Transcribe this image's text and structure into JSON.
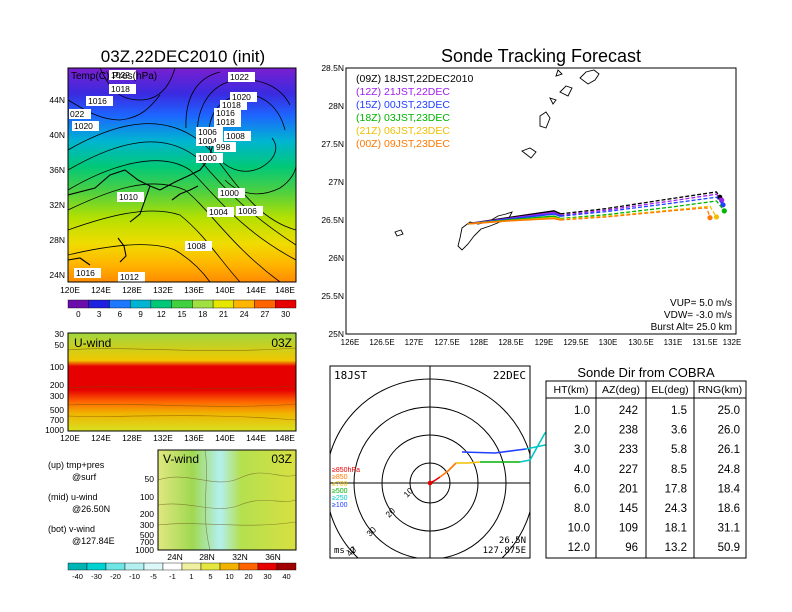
{
  "map_panel": {
    "title": "03Z,22DEC2010 (init)",
    "overlay_label": "Temp(C) Pres(hPa)",
    "lon_ticks": [
      "120E",
      "124E",
      "128E",
      "132E",
      "136E",
      "140E",
      "144E",
      "148E"
    ],
    "lat_ticks": [
      "44N",
      "40N",
      "36N",
      "32N",
      "28N",
      "24N"
    ],
    "pressure_labels": [
      "1022",
      "1018",
      "1016",
      "1020",
      "1016",
      "022",
      "1020",
      "1018",
      "1016",
      "1020",
      "1008",
      "1006",
      "1004",
      "1008",
      "998",
      "1000",
      "1010",
      "1000",
      "1004",
      "1006",
      "1008",
      "1016",
      "1012",
      "1004",
      "1012"
    ],
    "colorbar": [
      "0",
      "3",
      "6",
      "9",
      "12",
      "15",
      "18",
      "21",
      "24",
      "27",
      "30"
    ],
    "colorbar_colors": [
      "#6a0dad",
      "#2020e0",
      "#1e78ff",
      "#00b4d2",
      "#00c878",
      "#40d040",
      "#a0e040",
      "#e6e600",
      "#ffb400",
      "#ff6400",
      "#e60000"
    ]
  },
  "uwind_panel": {
    "title": "U-wind",
    "time": "03Z",
    "y_ticks": [
      "30",
      "50",
      "100",
      "200",
      "300",
      "500",
      "700",
      "1000"
    ],
    "x_ticks": [
      "120E",
      "124E",
      "128E",
      "132E",
      "136E",
      "140E",
      "144E",
      "148E"
    ]
  },
  "vwind_panel": {
    "title": "V-wind",
    "time": "03Z",
    "y_ticks": [
      "50",
      "100",
      "200",
      "300",
      "500",
      "700",
      "1000"
    ],
    "x_ticks": [
      "24N",
      "28N",
      "32N",
      "36N"
    ],
    "colorbar": [
      "-40",
      "-30",
      "-20",
      "-10",
      "-5",
      "-1",
      "1",
      "5",
      "10",
      "20",
      "30",
      "40"
    ],
    "colorbar_colors": [
      "#00b4b4",
      "#00d2d2",
      "#6ee6e6",
      "#b4f0f0",
      "#dcf8f8",
      "#ffffff",
      "#f0f0a0",
      "#e6e640",
      "#f0b400",
      "#ff6400",
      "#e60000",
      "#a00000"
    ]
  },
  "legend_text": {
    "up": "(up) tmp+pres",
    "up2": "@surf",
    "mid": "(mid) u-wind",
    "mid2": "@26.50N",
    "bot": "(bot) v-wind",
    "bot2": "@127.84E"
  },
  "tracking_panel": {
    "title": "Sonde Tracking Forecast",
    "legend": [
      {
        "label": "(09Z)  18JST,22DEC2010",
        "color": "#000000"
      },
      {
        "label": "(12Z)  21JST,22DEC",
        "color": "#a020f0"
      },
      {
        "label": "(15Z)  00JST,23DEC",
        "color": "#2040ff"
      },
      {
        "label": "(18Z)  03JST,23DEC",
        "color": "#00b400"
      },
      {
        "label": "(21Z)  06JST,23DEC",
        "color": "#f0c000"
      },
      {
        "label": "(00Z)  09JST,23DEC",
        "color": "#ff7800"
      }
    ],
    "y_ticks": [
      "28.5N",
      "28N",
      "27.5N",
      "27N",
      "26.5N",
      "26N",
      "25.5N",
      "25N"
    ],
    "x_ticks": [
      "126E",
      "126.5E",
      "127E",
      "127.5E",
      "128E",
      "128.5E",
      "129E",
      "129.5E",
      "130E",
      "130.5E",
      "131E",
      "131.5E",
      "132E"
    ],
    "info": [
      "VUP=  5.0  m/s",
      "VDW= -3.0  m/s",
      "Burst Alt=  25.0  km"
    ]
  },
  "chart_data": {
    "type": "line",
    "title": "Sonde Tracking Forecast",
    "xlim": [
      126,
      132
    ],
    "ylim": [
      25,
      28.5
    ],
    "series": [
      {
        "name": "(09Z) 18JST,22DEC2010",
        "color": "#000000",
        "x": [
          127.875,
          128.5,
          129.2,
          129.3,
          130.0,
          131.0,
          131.7,
          131.75
        ],
        "y": [
          26.45,
          26.53,
          26.62,
          26.58,
          26.65,
          26.78,
          26.87,
          26.8
        ]
      },
      {
        "name": "(12Z) 21JST,22DEC",
        "color": "#a020f0",
        "x": [
          127.875,
          128.5,
          129.2,
          129.3,
          130.0,
          131.0,
          131.7,
          131.78
        ],
        "y": [
          26.45,
          26.52,
          26.6,
          26.56,
          26.63,
          26.75,
          26.84,
          26.76
        ]
      },
      {
        "name": "(15Z) 00JST,23DEC",
        "color": "#2040ff",
        "x": [
          127.875,
          128.5,
          129.2,
          129.3,
          130.0,
          131.0,
          131.7,
          131.8
        ],
        "y": [
          26.45,
          26.51,
          26.58,
          26.55,
          26.61,
          26.72,
          26.8,
          26.7
        ]
      },
      {
        "name": "(18Z) 03JST,23DEC",
        "color": "#00b400",
        "x": [
          127.875,
          128.5,
          129.2,
          129.3,
          130.0,
          131.0,
          131.7,
          131.82
        ],
        "y": [
          26.45,
          26.5,
          26.55,
          26.52,
          26.57,
          26.67,
          26.75,
          26.62
        ]
      },
      {
        "name": "(21Z) 06JST,23DEC",
        "color": "#f0c000",
        "x": [
          127.875,
          128.5,
          129.2,
          129.3,
          130.0,
          131.0,
          131.6,
          131.7
        ],
        "y": [
          26.45,
          26.49,
          26.53,
          26.51,
          26.55,
          26.63,
          26.68,
          26.54
        ]
      },
      {
        "name": "(00Z) 09JST,23DEC",
        "color": "#ff7800",
        "x": [
          127.875,
          128.5,
          129.2,
          129.3,
          130.0,
          131.0,
          131.55,
          131.6
        ],
        "y": [
          26.45,
          26.49,
          26.52,
          26.5,
          26.54,
          26.62,
          26.66,
          26.53
        ]
      }
    ]
  },
  "polar_panel": {
    "time_left": "18JST",
    "date_right": "22DEC",
    "ring_labels": [
      "10",
      "20",
      "30",
      "40"
    ],
    "levels": [
      {
        "label": "≥850hPa",
        "color": "#e60000"
      },
      {
        "label": "≥850",
        "color": "#ff7800"
      },
      {
        "label": "≥700",
        "color": "#f0c000"
      },
      {
        "label": "≥500",
        "color": "#00b400"
      },
      {
        "label": "≥250",
        "color": "#00c8c8"
      },
      {
        "label": "≥100",
        "color": "#2040ff"
      }
    ],
    "unit": "ms-1",
    "loc_lat": "26.5N",
    "loc_lon": "127.875E"
  },
  "cobra_table": {
    "title": "Sonde Dir from COBRA",
    "headers": [
      "HT(km)",
      "AZ(deg)",
      "EL(deg)",
      "RNG(km)"
    ],
    "rows": [
      [
        "1.0",
        "242",
        "1.5",
        "25.0"
      ],
      [
        "2.0",
        "238",
        "3.6",
        "26.0"
      ],
      [
        "3.0",
        "233",
        "5.8",
        "26.1"
      ],
      [
        "4.0",
        "227",
        "8.5",
        "24.8"
      ],
      [
        "6.0",
        "201",
        "17.8",
        "18.4"
      ],
      [
        "8.0",
        "145",
        "24.3",
        "18.6"
      ],
      [
        "10.0",
        "109",
        "18.1",
        "31.1"
      ],
      [
        "12.0",
        "96",
        "13.2",
        "50.9"
      ]
    ]
  }
}
